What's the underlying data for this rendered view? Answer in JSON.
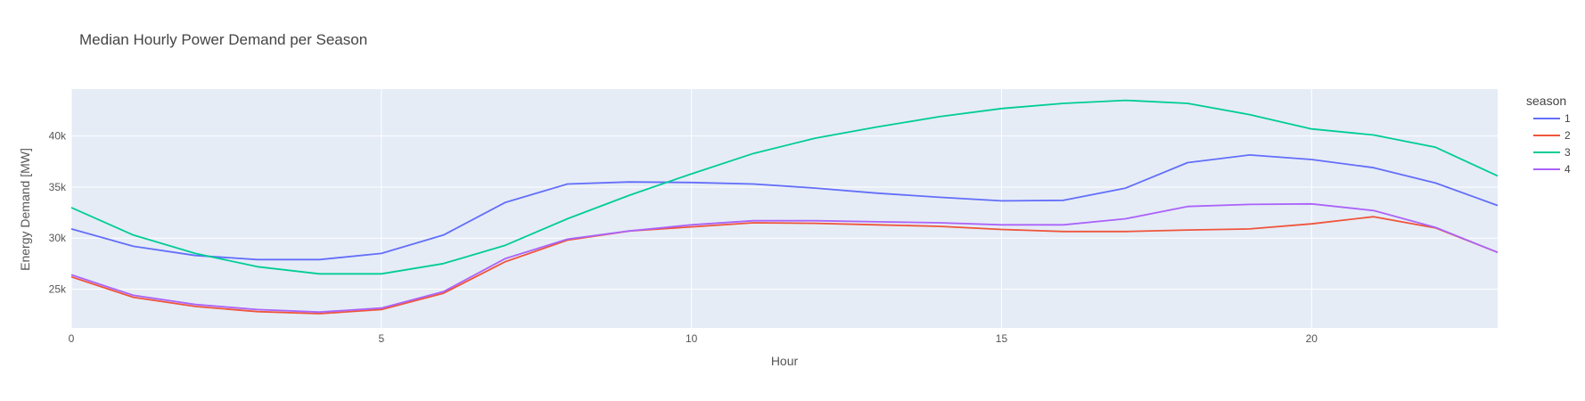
{
  "chart_data": {
    "type": "line",
    "title": "Median Hourly Power Demand per Season",
    "xlabel": "Hour",
    "ylabel": "Energy Demand [MW]",
    "xlim": [
      0,
      23
    ],
    "ylim": [
      21200,
      44600
    ],
    "x_ticks": [
      0,
      5,
      10,
      15,
      20
    ],
    "y_ticks": [
      25000,
      30000,
      35000,
      40000
    ],
    "y_tick_labels": [
      "25k",
      "30k",
      "35k",
      "40k"
    ],
    "grid": true,
    "legend_title": "season",
    "legend_position": "right",
    "x": [
      0,
      1,
      2,
      3,
      4,
      5,
      6,
      7,
      8,
      9,
      10,
      11,
      12,
      13,
      14,
      15,
      16,
      17,
      18,
      19,
      20,
      21,
      22,
      23
    ],
    "series": [
      {
        "name": "1",
        "color": "#636efa",
        "values": [
          30900,
          29200,
          28300,
          27900,
          27900,
          28500,
          30300,
          33500,
          35300,
          35500,
          35450,
          35300,
          34900,
          34400,
          34000,
          33650,
          33700,
          34900,
          37400,
          38150,
          37700,
          36900,
          35400,
          33200
        ]
      },
      {
        "name": "2",
        "color": "#ef553b",
        "values": [
          26200,
          24200,
          23300,
          22800,
          22600,
          23000,
          24600,
          27700,
          29800,
          30700,
          31100,
          31500,
          31450,
          31300,
          31150,
          30850,
          30650,
          30650,
          30800,
          30900,
          31400,
          32100,
          31000,
          28600
        ]
      },
      {
        "name": "3",
        "color": "#00cc96",
        "values": [
          33000,
          30300,
          28500,
          27200,
          26500,
          26500,
          27500,
          29300,
          31900,
          34200,
          36300,
          38300,
          39800,
          40900,
          41900,
          42700,
          43200,
          43500,
          43200,
          42100,
          40700,
          40100,
          38900,
          36100
        ]
      },
      {
        "name": "4",
        "color": "#ab63fa",
        "values": [
          26400,
          24400,
          23500,
          23000,
          22750,
          23150,
          24750,
          28000,
          29900,
          30700,
          31300,
          31700,
          31700,
          31600,
          31500,
          31300,
          31300,
          31900,
          33100,
          33300,
          33350,
          32700,
          31050,
          28600
        ]
      }
    ]
  }
}
